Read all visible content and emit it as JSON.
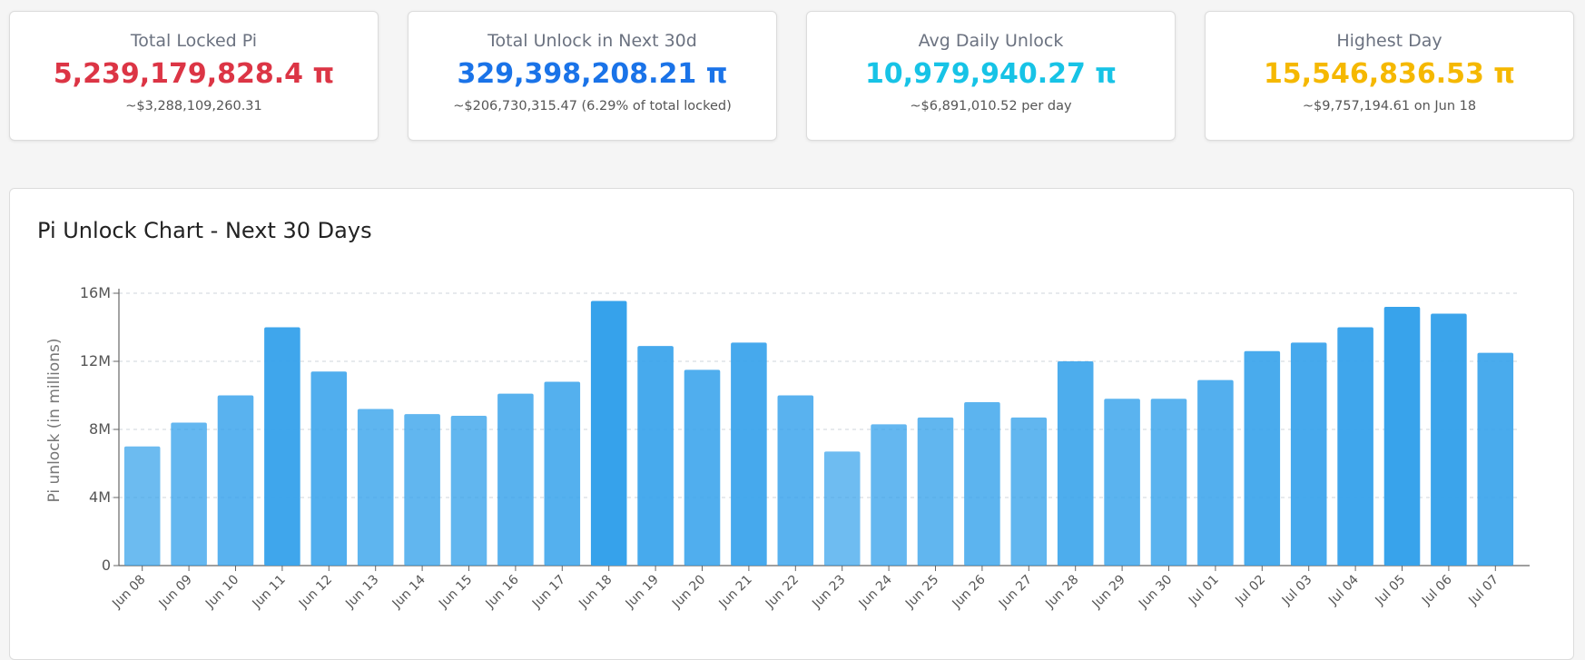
{
  "cards": [
    {
      "title": "Total Locked Pi",
      "value": "5,239,179,828.4 π",
      "sub": "~$3,288,109,260.31",
      "color": "#dc3545"
    },
    {
      "title": "Total Unlock in Next 30d",
      "value": "329,398,208.21 π",
      "sub": "~$206,730,315.47 (6.29% of total locked)",
      "color": "#1a73e8"
    },
    {
      "title": "Avg Daily Unlock",
      "value": "10,979,940.27 π",
      "sub": "~$6,891,010.52 per day",
      "color": "#17c3e6"
    },
    {
      "title": "Highest Day",
      "value": "15,546,836.53 π",
      "sub": "~$9,757,194.61 on Jun 18",
      "color": "#f5b800"
    }
  ],
  "chart_title": "Pi Unlock Chart - Next 30 Days",
  "chart_data": {
    "type": "bar",
    "ylabel": "Pi unlock (in millions)",
    "xlabel": "",
    "ylim": [
      0,
      16000000
    ],
    "yticks": [
      {
        "value": 0,
        "label": "0"
      },
      {
        "value": 4000000,
        "label": "4M"
      },
      {
        "value": 8000000,
        "label": "8M"
      },
      {
        "value": 12000000,
        "label": "12M"
      },
      {
        "value": 16000000,
        "label": "16M"
      }
    ],
    "grid": true,
    "bar_color": "#36a2eb",
    "categories": [
      "Jun 08",
      "Jun 09",
      "Jun 10",
      "Jun 11",
      "Jun 12",
      "Jun 13",
      "Jun 14",
      "Jun 15",
      "Jun 16",
      "Jun 17",
      "Jun 18",
      "Jun 19",
      "Jun 20",
      "Jun 21",
      "Jun 22",
      "Jun 23",
      "Jun 24",
      "Jun 25",
      "Jun 26",
      "Jun 27",
      "Jun 28",
      "Jun 29",
      "Jun 30",
      "Jul 01",
      "Jul 02",
      "Jul 03",
      "Jul 04",
      "Jul 05",
      "Jul 06",
      "Jul 07"
    ],
    "values": [
      7000000,
      8400000,
      10000000,
      14000000,
      11400000,
      9200000,
      8900000,
      8800000,
      10100000,
      10800000,
      15546836.53,
      12900000,
      11500000,
      13100000,
      10000000,
      6700000,
      8300000,
      8700000,
      9600000,
      8700000,
      12000000,
      9800000,
      9800000,
      10900000,
      12600000,
      13100000,
      14000000,
      15200000,
      14800000,
      12500000
    ]
  }
}
